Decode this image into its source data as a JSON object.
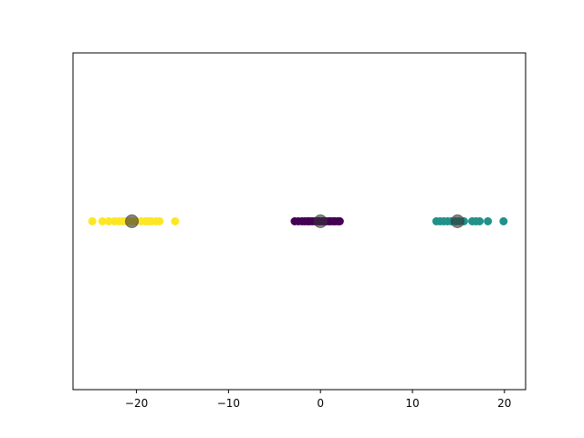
{
  "chart_data": {
    "type": "scatter",
    "title": "",
    "xlabel": "",
    "ylabel": "",
    "xlim": [
      -26.9,
      22.3
    ],
    "ylim": [
      -1,
      1
    ],
    "grid": false,
    "y_ticks_visible": false,
    "x_ticks": [
      -20,
      -10,
      0,
      10,
      20
    ],
    "x_tick_labels": [
      "−20",
      "−10",
      "0",
      "10",
      "20"
    ],
    "series": [
      {
        "color": "#440154",
        "x": [
          -2.8,
          -2.4,
          -2.0,
          -1.7,
          -1.4,
          -1.2,
          -0.9,
          -0.6,
          -0.3,
          -0.1,
          0.2,
          0.4,
          0.6,
          0.9,
          1.1,
          1.4,
          1.6,
          1.9,
          2.1
        ],
        "y": [
          0,
          0,
          0,
          0,
          0,
          0,
          0,
          0,
          0,
          0,
          0,
          0,
          0,
          0,
          0,
          0,
          0,
          0,
          0
        ]
      },
      {
        "color": "#21918c",
        "x": [
          12.6,
          13.0,
          13.4,
          13.8,
          14.2,
          14.7,
          15.1,
          15.6,
          16.5,
          16.9,
          17.3,
          18.2,
          19.9
        ],
        "y": [
          0,
          0,
          0,
          0,
          0,
          0,
          0,
          0,
          0,
          0,
          0,
          0,
          0
        ]
      },
      {
        "color": "#fde725",
        "x": [
          -24.8,
          -23.7,
          -23.0,
          -22.4,
          -21.9,
          -21.5,
          -21.1,
          -20.6,
          -20.1,
          -19.5,
          -19.0,
          -18.7,
          -18.4,
          -17.9,
          -17.5,
          -15.8
        ],
        "y": [
          0,
          0,
          0,
          0,
          0,
          0,
          0,
          0,
          0,
          0,
          0,
          0,
          0,
          0,
          0,
          0
        ]
      }
    ],
    "centers": {
      "color": "#333333",
      "opacity": 0.6,
      "x": [
        0.0,
        14.9,
        -20.5
      ],
      "y": [
        0,
        0,
        0
      ]
    }
  }
}
